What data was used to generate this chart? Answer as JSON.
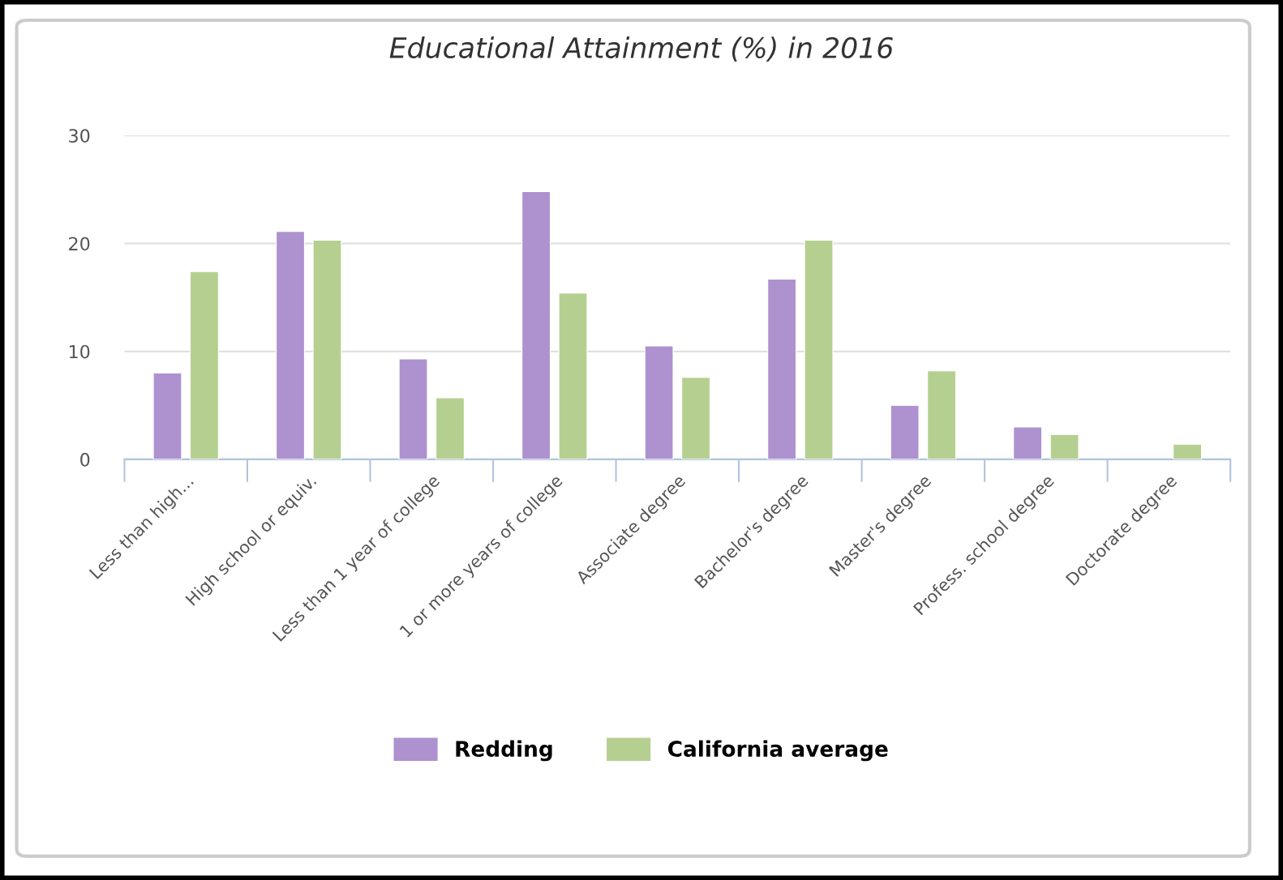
{
  "chart_data": {
    "type": "bar",
    "title": "Educational Attainment (%) in 2016",
    "categories": [
      "Less than high...",
      "High school or equiv.",
      "Less than 1 year of college",
      "1 or more years of college",
      "Associate degree",
      "Bachelor's degree",
      "Master's degree",
      "Profess. school degree",
      "Doctorate degree"
    ],
    "series": [
      {
        "name": "Redding",
        "color": "#ad92cf",
        "values": [
          8.0,
          21.1,
          9.3,
          24.8,
          10.5,
          16.7,
          5.0,
          3.0,
          null
        ]
      },
      {
        "name": "California average",
        "color": "#b5cf90",
        "values": [
          17.4,
          20.3,
          5.7,
          15.4,
          7.6,
          20.3,
          8.2,
          2.3,
          1.4
        ]
      }
    ],
    "ylim": [
      0,
      30
    ],
    "yticks": [
      0,
      10,
      20,
      30
    ],
    "grid": "y",
    "legend": "bottom"
  }
}
